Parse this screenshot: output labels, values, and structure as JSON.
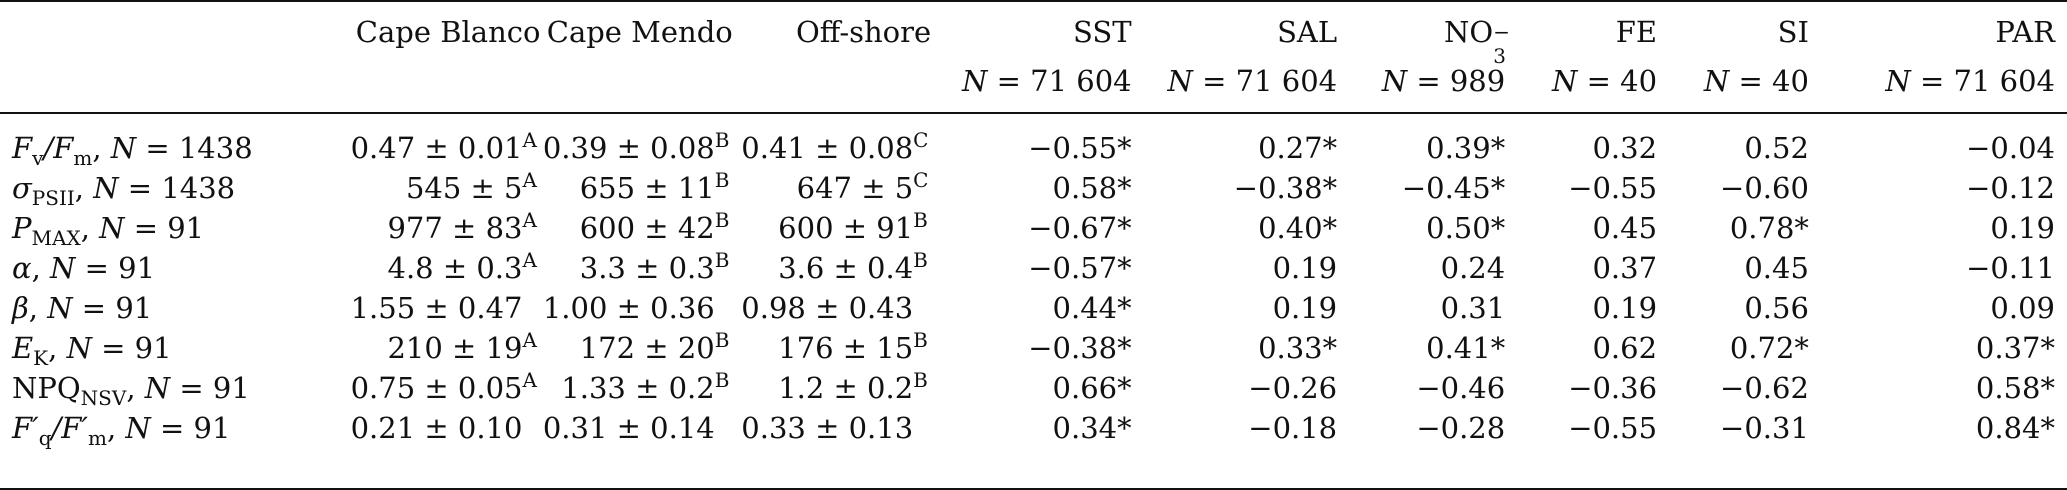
{
  "header": {
    "columns": [
      {
        "key": "cape_blanco",
        "label": "Cape Blanco",
        "n": ""
      },
      {
        "key": "cape_mendo",
        "label": "Cape Mendo",
        "n": ""
      },
      {
        "key": "offshore",
        "label": "Off-shore",
        "n": ""
      },
      {
        "key": "sst",
        "label": "SST",
        "n": "N = 71 604"
      },
      {
        "key": "sal",
        "label": "SAL",
        "n": "N = 71 604"
      },
      {
        "key": "no3",
        "label": "NO",
        "label_sub": "3",
        "label_sup": "−",
        "n": "N = 989"
      },
      {
        "key": "fe",
        "label": "FE",
        "n": "N = 40"
      },
      {
        "key": "si",
        "label": "SI",
        "n": "N = 40"
      },
      {
        "key": "par",
        "label": "PAR",
        "n": "N = 71 604"
      }
    ]
  },
  "rows": [
    {
      "label_main": "F",
      "label_sub": "v",
      "label_mid": "/F",
      "label_sub2": "m",
      "label_n": ", N = 1438",
      "cape_blanco": {
        "v": "0.47 ± 0.01",
        "sup": "A"
      },
      "cape_mendo": {
        "v": "0.39 ± 0.08",
        "sup": "B"
      },
      "offshore": {
        "v": "0.41 ± 0.08",
        "sup": "C"
      },
      "sst": "−0.55*",
      "sal": "0.27*",
      "no3": "0.39*",
      "fe": "0.32",
      "si": "0.52",
      "par": "−0.04"
    },
    {
      "label_main": "σ",
      "label_sub": "PSII",
      "label_mid": "",
      "label_sub2": "",
      "label_n": ", N = 1438",
      "cape_blanco": {
        "v": "545 ± 5",
        "sup": "A"
      },
      "cape_mendo": {
        "v": "655 ± 11",
        "sup": "B"
      },
      "offshore": {
        "v": "647 ± 5",
        "sup": "C"
      },
      "sst": "0.58*",
      "sal": "−0.38*",
      "no3": "−0.45*",
      "fe": "−0.55",
      "si": "−0.60",
      "par": "−0.12"
    },
    {
      "label_main": "P",
      "label_sub": "MAX",
      "label_mid": "",
      "label_sub2": "",
      "label_n": ", N = 91",
      "cape_blanco": {
        "v": "977 ± 83",
        "sup": "A"
      },
      "cape_mendo": {
        "v": "600 ± 42",
        "sup": "B"
      },
      "offshore": {
        "v": "600 ± 91",
        "sup": "B"
      },
      "sst": "−0.67*",
      "sal": "0.40*",
      "no3": "0.50*",
      "fe": "0.45",
      "si": "0.78*",
      "par": "0.19"
    },
    {
      "label_main": "α",
      "label_sub": "",
      "label_mid": "",
      "label_sub2": "",
      "label_n": ", N = 91",
      "cape_blanco": {
        "v": "4.8 ± 0.3",
        "sup": "A"
      },
      "cape_mendo": {
        "v": "3.3 ± 0.3",
        "sup": "B"
      },
      "offshore": {
        "v": "3.6 ± 0.4",
        "sup": "B"
      },
      "sst": "−0.57*",
      "sal": "0.19",
      "no3": "0.24",
      "fe": "0.37",
      "si": "0.45",
      "par": "−0.11"
    },
    {
      "label_main": "β",
      "label_sub": "",
      "label_mid": "",
      "label_sub2": "",
      "label_n": ", N = 91",
      "cape_blanco": {
        "v": "1.55 ± 0.47",
        "sup": ""
      },
      "cape_mendo": {
        "v": "1.00 ± 0.36",
        "sup": ""
      },
      "offshore": {
        "v": "0.98 ± 0.43",
        "sup": ""
      },
      "sst": "0.44*",
      "sal": "0.19",
      "no3": "0.31",
      "fe": "0.19",
      "si": "0.56",
      "par": "0.09"
    },
    {
      "label_main": "E",
      "label_sub": "K",
      "label_mid": "",
      "label_sub2": "",
      "label_n": ", N = 91",
      "cape_blanco": {
        "v": "210 ± 19",
        "sup": "A"
      },
      "cape_mendo": {
        "v": "172 ± 20",
        "sup": "B"
      },
      "offshore": {
        "v": "176 ± 15",
        "sup": "B"
      },
      "sst": "−0.38*",
      "sal": "0.33*",
      "no3": "0.41*",
      "fe": "0.62",
      "si": "0.72*",
      "par": "0.37*"
    },
    {
      "label_main": "NPQ",
      "label_sub": "NSV",
      "label_mid": "",
      "label_sub2": "",
      "label_n": ", N = 91",
      "cape_blanco": {
        "v": "0.75 ± 0.05",
        "sup": "A"
      },
      "cape_mendo": {
        "v": "1.33 ± 0.2",
        "sup": "B"
      },
      "offshore": {
        "v": "1.2 ± 0.2",
        "sup": "B"
      },
      "sst": "0.66*",
      "sal": "−0.26",
      "no3": "−0.46",
      "fe": "−0.36",
      "si": "−0.62",
      "par": "0.58*"
    },
    {
      "label_main": "F′",
      "label_sub": "q",
      "label_mid": "/F′",
      "label_sub2": "m",
      "label_n": ", N = 91",
      "cape_blanco": {
        "v": "0.21 ± 0.10",
        "sup": ""
      },
      "cape_mendo": {
        "v": "0.31 ± 0.14",
        "sup": ""
      },
      "offshore": {
        "v": "0.33 ± 0.13",
        "sup": ""
      },
      "sst": "0.34*",
      "sal": "−0.18",
      "no3": "−0.28",
      "fe": "−0.55",
      "si": "−0.31",
      "par": "0.84*"
    }
  ]
}
